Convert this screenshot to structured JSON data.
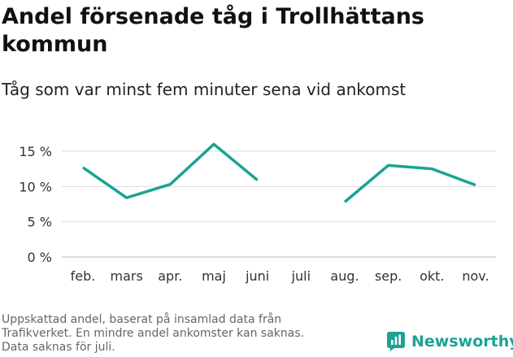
{
  "header": {
    "title_line1": "Andel försenade tåg i Trollhättans",
    "title_line2": "kommun",
    "subtitle": "Tåg som var minst fem minuter sena vid ankomst"
  },
  "footnote": {
    "line1": "Uppskattad andel, baserat på insamlad data från",
    "line2": "Trafikverket. En mindre andel ankomster kan saknas.",
    "line3": "Data saknas för juli."
  },
  "brand": {
    "name": "Newsworthy",
    "color": "#1aa391",
    "icon": "newsworthy-logo-icon"
  },
  "chart_data": {
    "type": "line",
    "title": "Andel försenade tåg i Trollhättans kommun",
    "subtitle": "Tåg som var minst fem minuter sena vid ankomst",
    "xlabel": "",
    "ylabel": "",
    "categories": [
      "feb.",
      "mars",
      "apr.",
      "maj",
      "juni",
      "juli",
      "aug.",
      "sep.",
      "okt.",
      "nov."
    ],
    "series": [
      {
        "values": [
          12.7,
          8.4,
          10.3,
          16.0,
          10.9,
          null,
          7.8,
          13.0,
          12.5,
          10.2
        ],
        "color": "#1aa391"
      }
    ],
    "yticks": [
      0,
      5,
      10,
      15
    ],
    "ytick_labels": [
      "0 %",
      "5 %",
      "10 %",
      "15 %"
    ],
    "ylim": [
      0,
      16.5
    ],
    "grid": true,
    "gridColor": "#dddddd"
  }
}
